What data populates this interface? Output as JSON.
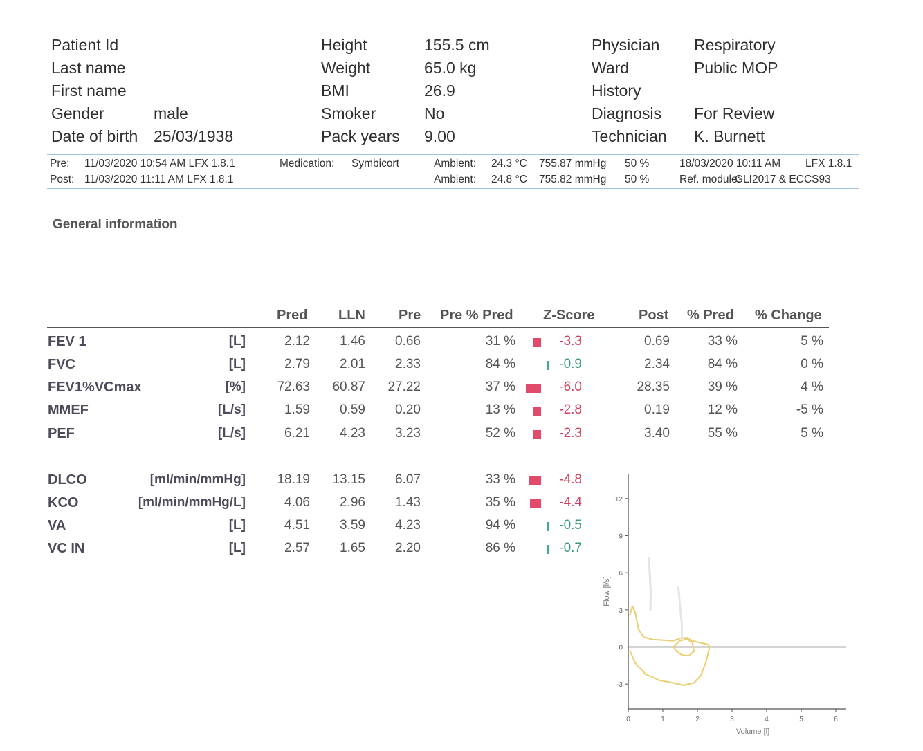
{
  "patient": {
    "id_label": "Patient Id",
    "last_name_label": "Last name",
    "first_name_label": "First name",
    "gender_label": "Gender",
    "gender": "male",
    "dob_label": "Date of birth",
    "dob": "25/03/1938",
    "height_label": "Height",
    "height": "155.5 cm",
    "weight_label": "Weight",
    "weight": "65.0 kg",
    "bmi_label": "BMI",
    "bmi": "26.9",
    "smoker_label": "Smoker",
    "smoker": "No",
    "pack_years_label": "Pack years",
    "pack_years": "9.00",
    "physician_label": "Physician",
    "physician": "Respiratory",
    "ward_label": "Ward",
    "ward": "Public MOP",
    "history_label": "History",
    "diagnosis_label": "Diagnosis",
    "diagnosis": "For Review",
    "technician_label": "Technician",
    "technician": "K. Burnett"
  },
  "test_info": {
    "pre_label": "Pre:",
    "pre_value": "11/03/2020 10:54 AM LFX 1.8.1",
    "post_label": "Post:",
    "post_value": "11/03/2020 11:11 AM LFX 1.8.1",
    "medication_label": "Medication:",
    "medication": "Symbicort",
    "ambient_label": "Ambient:",
    "ambient_pre_temp": "24.3 °C",
    "ambient_pre_pressure": "755.87 mmHg",
    "ambient_pre_humidity": "50 %",
    "ambient_post_temp": "24.8 °C",
    "ambient_post_pressure": "755.82 mmHg",
    "ambient_post_humidity": "50 %",
    "report_date": "18/03/2020 10:11 AM",
    "report_version": "LFX 1.8.1",
    "ref_module_label": "Ref. module:",
    "ref_module": "GLI2017 & ECCS93"
  },
  "section_title": "General information",
  "table": {
    "headers": {
      "pred": "Pred",
      "lln": "LLN",
      "pre": "Pre",
      "pre_pct_pred": "Pre % Pred",
      "zscore": "Z-Score",
      "post": "Post",
      "pct_pred": "% Pred",
      "pct_change": "% Change"
    },
    "rows": [
      {
        "label": "FEV 1",
        "unit": "[L]",
        "pred": "2.12",
        "lln": "1.46",
        "pre": "0.66",
        "pre_pct": "31 %",
        "z": "-3.3",
        "z_value": -3.3,
        "post": "0.69",
        "post_pct": "33 %",
        "change": "5 %"
      },
      {
        "label": "FVC",
        "unit": "[L]",
        "pred": "2.79",
        "lln": "2.01",
        "pre": "2.33",
        "pre_pct": "84 %",
        "z": "-0.9",
        "z_value": -0.9,
        "post": "2.34",
        "post_pct": "84 %",
        "change": "0 %"
      },
      {
        "label": "FEV1%VCmax",
        "unit": "[%]",
        "pred": "72.63",
        "lln": "60.87",
        "pre": "27.22",
        "pre_pct": "37 %",
        "z": "-6.0",
        "z_value": -6.0,
        "post": "28.35",
        "post_pct": "39 %",
        "change": "4 %"
      },
      {
        "label": "MMEF",
        "unit": "[L/s]",
        "pred": "1.59",
        "lln": "0.59",
        "pre": "0.20",
        "pre_pct": "13 %",
        "z": "-2.8",
        "z_value": -2.8,
        "post": "0.19",
        "post_pct": "12 %",
        "change": "-5 %"
      },
      {
        "label": "PEF",
        "unit": "[L/s]",
        "pred": "6.21",
        "lln": "4.23",
        "pre": "3.23",
        "pre_pct": "52 %",
        "z": "-2.3",
        "z_value": -2.3,
        "post": "3.40",
        "post_pct": "55 %",
        "change": "5 %"
      }
    ],
    "rows2": [
      {
        "label": "DLCO",
        "unit": "[ml/min/mmHg]",
        "pred": "18.19",
        "lln": "13.15",
        "pre": "6.07",
        "pre_pct": "33 %",
        "z": "-4.8",
        "z_value": -4.8
      },
      {
        "label": "KCO",
        "unit": "[ml/min/mmHg/L]",
        "pred": "4.06",
        "lln": "2.96",
        "pre": "1.43",
        "pre_pct": "35 %",
        "z": "-4.4",
        "z_value": -4.4
      },
      {
        "label": "VA",
        "unit": "[L]",
        "pred": "4.51",
        "lln": "3.59",
        "pre": "4.23",
        "pre_pct": "94 %",
        "z": "-0.5",
        "z_value": -0.5
      },
      {
        "label": "VC IN",
        "unit": "[L]",
        "pred": "2.57",
        "lln": "1.65",
        "pre": "2.20",
        "pre_pct": "86 %",
        "z": "-0.7",
        "z_value": -0.7
      }
    ]
  },
  "chart_data": {
    "type": "line",
    "xlabel": "Volume [l]",
    "ylabel": "Flow [l/s]",
    "xlim": [
      0,
      6.3
    ],
    "ylim": [
      -5,
      14
    ],
    "x_ticks": [
      "0",
      "1",
      "2",
      "3",
      "4",
      "5",
      "6"
    ],
    "y_ticks": [
      "12",
      "9",
      "6",
      "3",
      "0",
      "-3"
    ],
    "series": [
      {
        "color": "#e8d27a",
        "x": [
          0.05,
          0.12,
          0.2,
          0.3,
          0.45,
          0.7,
          1.0,
          1.3,
          1.5,
          1.7,
          1.85,
          2.0,
          2.15,
          2.3,
          2.35
        ],
        "y": [
          2.6,
          3.3,
          2.8,
          1.4,
          0.8,
          0.6,
          0.55,
          0.5,
          0.7,
          0.75,
          0.5,
          0.4,
          0.3,
          0.2,
          0.0
        ]
      },
      {
        "color": "#e8d27a",
        "x": [
          0.05,
          0.2,
          0.5,
          0.9,
          1.3,
          1.6,
          1.9,
          2.1,
          2.25,
          2.35
        ],
        "y": [
          -0.3,
          -1.3,
          -2.2,
          -2.7,
          -2.9,
          -3.1,
          -2.9,
          -2.3,
          -1.2,
          0.0
        ]
      },
      {
        "color": "#e8d27a",
        "x": [
          1.3,
          1.5,
          1.7,
          1.85,
          1.9,
          1.75,
          1.55,
          1.4,
          1.3
        ],
        "y": [
          0.0,
          0.5,
          0.65,
          0.35,
          -0.35,
          -0.7,
          -0.65,
          -0.35,
          0.0
        ]
      },
      {
        "color": "#e3e3e3",
        "x": [
          0.6,
          0.62,
          0.65,
          0.64
        ],
        "y": [
          7.2,
          6.0,
          4.5,
          3.0
        ]
      },
      {
        "color": "#e6e6e6",
        "x": [
          1.45,
          1.5,
          1.55,
          1.55
        ],
        "y": [
          4.8,
          3.2,
          1.8,
          0.6
        ]
      }
    ]
  }
}
